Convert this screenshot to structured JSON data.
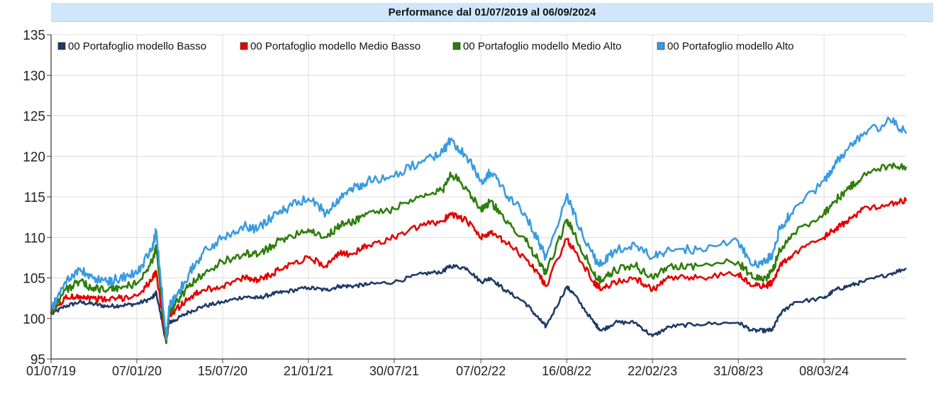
{
  "title": "Performance dal 01/07/2019 al 06/09/2024",
  "chart_data": {
    "type": "line",
    "title": "Performance dal 01/07/2019 al 06/09/2024",
    "xlabel": "",
    "ylabel": "",
    "ylim": [
      95,
      135
    ],
    "yticks": [
      95,
      100,
      105,
      110,
      115,
      120,
      125,
      130,
      135
    ],
    "xticks": [
      "01/07/19",
      "07/01/20",
      "15/07/20",
      "21/01/21",
      "30/07/21",
      "07/02/22",
      "16/08/22",
      "22/02/23",
      "31/08/23",
      "08/03/24"
    ],
    "xlim": [
      "01/07/2019",
      "06/09/2024"
    ],
    "grid": true,
    "legend_position": "top",
    "x": [
      "01/07/2019",
      "01/08/2019",
      "01/09/2019",
      "01/10/2019",
      "01/11/2019",
      "01/12/2019",
      "07/01/2020",
      "10/02/2020",
      "19/02/2020",
      "12/03/2020",
      "18/03/2020",
      "01/04/2020",
      "01/05/2020",
      "01/06/2020",
      "15/07/2020",
      "01/09/2020",
      "01/10/2020",
      "01/11/2020",
      "01/12/2020",
      "21/01/2021",
      "01/03/2021",
      "01/04/2021",
      "01/05/2021",
      "01/06/2021",
      "30/07/2021",
      "01/10/2021",
      "15/11/2021",
      "01/12/2021",
      "07/01/2022",
      "07/02/2022",
      "01/03/2022",
      "01/04/2022",
      "15/05/2022",
      "15/06/2022",
      "01/07/2022",
      "16/08/2022",
      "01/09/2022",
      "15/10/2022",
      "01/11/2022",
      "01/12/2022",
      "15/01/2023",
      "22/02/2023",
      "01/04/2023",
      "01/06/2023",
      "31/08/2023",
      "01/10/2023",
      "01/11/2023",
      "15/11/2023",
      "01/12/2023",
      "01/01/2024",
      "08/03/2024",
      "01/04/2024",
      "01/05/2024",
      "01/06/2024",
      "01/08/2024",
      "06/09/2024"
    ],
    "series": [
      {
        "name": "00 Portafoglio modello Basso",
        "color": "#1f3a68",
        "values": [
          100.5,
          101.5,
          102.0,
          101.8,
          101.5,
          101.6,
          101.8,
          102.5,
          103.2,
          97.0,
          99.5,
          99.8,
          100.8,
          101.5,
          102.0,
          102.7,
          102.5,
          103.0,
          103.3,
          103.8,
          103.5,
          104.0,
          104.0,
          104.2,
          104.5,
          105.5,
          105.8,
          106.5,
          106.2,
          104.5,
          105.0,
          103.5,
          102.0,
          100.0,
          99.0,
          103.9,
          103.0,
          99.5,
          98.5,
          99.5,
          99.5,
          97.8,
          99.0,
          99.3,
          99.5,
          98.5,
          98.5,
          98.6,
          100.5,
          102.0,
          102.5,
          103.5,
          104.0,
          104.5,
          105.5,
          106.2
        ]
      },
      {
        "name": "00 Portafoglio modello Medio Basso",
        "color": "#e60000",
        "values": [
          100.6,
          102.5,
          102.8,
          102.5,
          102.3,
          102.5,
          102.8,
          104.8,
          105.8,
          97.0,
          100.5,
          101.0,
          102.5,
          103.5,
          104.0,
          105.0,
          104.8,
          105.5,
          106.5,
          107.5,
          106.5,
          108.0,
          108.0,
          109.0,
          110.0,
          111.5,
          112.0,
          113.0,
          112.0,
          110.0,
          110.5,
          109.5,
          107.5,
          105.5,
          104.0,
          109.8,
          108.5,
          104.5,
          103.5,
          104.5,
          105.0,
          103.5,
          105.0,
          105.0,
          105.5,
          104.0,
          104.0,
          104.5,
          106.5,
          108.0,
          110.0,
          111.0,
          112.0,
          113.5,
          114.2,
          114.5
        ]
      },
      {
        "name": "00 Portafoglio modello Medio Alto",
        "color": "#2f7d0c",
        "values": [
          100.7,
          103.5,
          104.5,
          103.8,
          103.5,
          103.8,
          104.3,
          107.0,
          108.7,
          97.0,
          100.8,
          101.8,
          104.0,
          105.5,
          107.0,
          108.0,
          107.8,
          109.0,
          110.0,
          111.0,
          110.0,
          111.5,
          112.0,
          113.0,
          113.5,
          115.0,
          115.8,
          118.0,
          116.0,
          113.5,
          114.5,
          112.0,
          110.0,
          107.0,
          105.5,
          112.2,
          110.5,
          105.5,
          104.5,
          106.0,
          106.5,
          105.0,
          106.5,
          106.5,
          107.0,
          105.0,
          105.0,
          105.8,
          108.5,
          110.5,
          113.0,
          114.5,
          116.0,
          117.5,
          119.0,
          118.7
        ]
      },
      {
        "name": "00 Portafoglio modello Alto",
        "color": "#3a9be0",
        "values": [
          101.0,
          104.5,
          106.0,
          105.0,
          104.5,
          105.0,
          105.5,
          108.7,
          110.8,
          97.5,
          101.5,
          102.5,
          105.5,
          108.0,
          110.0,
          111.5,
          111.0,
          112.5,
          113.5,
          114.8,
          113.0,
          115.0,
          116.0,
          117.0,
          117.5,
          119.5,
          120.5,
          122.0,
          120.0,
          117.0,
          118.0,
          115.5,
          113.0,
          109.5,
          107.5,
          115.2,
          113.0,
          107.5,
          106.5,
          108.5,
          109.0,
          107.5,
          108.5,
          108.5,
          109.5,
          106.5,
          107.0,
          108.0,
          111.0,
          113.5,
          117.0,
          119.0,
          121.0,
          122.5,
          124.5,
          122.8
        ]
      }
    ]
  }
}
